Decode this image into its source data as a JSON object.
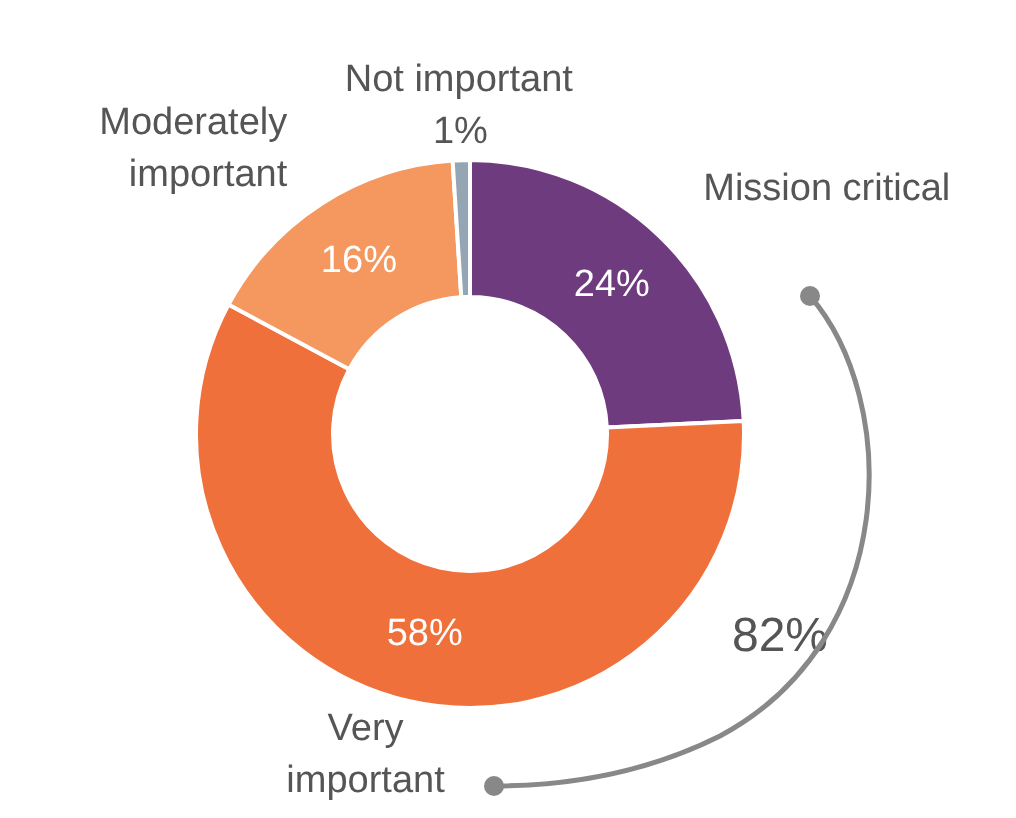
{
  "chart_data": {
    "type": "donut",
    "categories": [
      "Mission critical",
      "Very important",
      "Moderately important",
      "Not important"
    ],
    "values": [
      24,
      58,
      16,
      1
    ],
    "colors": [
      "#6e3b7e",
      "#ef703a",
      "#f4985f",
      "#94a5b3"
    ],
    "value_labels": [
      "24%",
      "58%",
      "16%",
      "1%"
    ],
    "legend": false,
    "annotations": [
      "82%"
    ]
  }
}
